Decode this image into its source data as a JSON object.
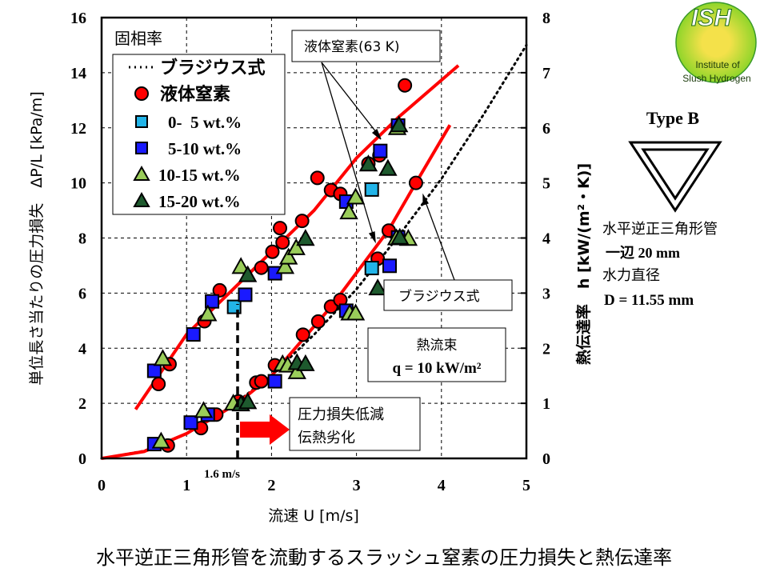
{
  "title": "水平逆正三角形管を流動するスラッシュ窒素の圧力損失と熱伝達率",
  "logo": {
    "main": "ISH",
    "line1": "Institute of",
    "line2": "Slush Hydrogen"
  },
  "side_panel": {
    "type_label": "Type B",
    "tube_desc": "水平逆正三角形管",
    "side_length": "一辺 20 mm",
    "hydraulic_diameter_label": "水力直径",
    "hydraulic_diameter_value": "D = 11.55 mm"
  },
  "annotations": {
    "legend_title": "固相率",
    "ln2_box": "液体窒素(63 K)",
    "blasius_box": "ブラジウス式",
    "heat_flux_label": "熱流束",
    "heat_flux_value": "q = 10 kW/m²",
    "effect_line1": "圧力損失低減",
    "effect_line2": "伝熱劣化",
    "velocity_marker": "1.6 m/s"
  },
  "colors": {
    "fit_line": "#ff0000",
    "liquid": "#ff0000",
    "s0_5": "#22b4e8",
    "s5_10": "#1a1aff",
    "s10_15": "#9acd5a",
    "s15_20": "#1e5a2e",
    "arrow": "#ff0000"
  },
  "chart_data": {
    "type": "scatter",
    "xlabel": "流速 U [m/s]",
    "ylabel_left": "単位長さ当たりの圧力損失　ΔP/L [kPa/m]",
    "ylabel_right": "熱伝達率　h [kW/(m²・K)]",
    "xlim": [
      0,
      5
    ],
    "ylim_left": [
      0,
      16
    ],
    "ylim_right": [
      0,
      8
    ],
    "x_ticks": [
      "0",
      "1",
      "2",
      "3",
      "4",
      "5"
    ],
    "y_left_ticks": [
      "0",
      "2",
      "4",
      "6",
      "8",
      "10",
      "12",
      "14",
      "16"
    ],
    "y_right_ticks": [
      "0",
      "1",
      "2",
      "3",
      "4",
      "5",
      "6",
      "7",
      "8"
    ],
    "grid": true,
    "legend_position": "top-left",
    "legend": [
      {
        "label": "ブラジウス式",
        "marker": "dotted-line"
      },
      {
        "label": "液体窒素",
        "marker": "circle"
      },
      {
        "label": "0-  5 wt.%",
        "marker": "square-light"
      },
      {
        "label": "5-10 wt.%",
        "marker": "square-dark"
      },
      {
        "label": "10-15 wt.%",
        "marker": "triangle-light"
      },
      {
        "label": "15-20 wt.%",
        "marker": "triangle-dark"
      }
    ],
    "pressure_drop": {
      "axis": "left",
      "series": [
        {
          "name": "液体窒素",
          "marker": "circle",
          "x": [
            0.78,
            1.17,
            1.35,
            1.61,
            1.82,
            1.88,
            2.04,
            2.37,
            2.55,
            2.7,
            2.81,
            3.25,
            3.38,
            3.7
          ],
          "y": [
            0.47,
            1.1,
            1.59,
            2.07,
            2.75,
            2.8,
            3.38,
            4.49,
            4.97,
            5.51,
            5.75,
            7.25,
            8.27,
            10.0
          ]
        },
        {
          "name": "0-  5 wt.%",
          "marker": "square-light",
          "x": [
            3.18
          ],
          "y": [
            6.91
          ]
        },
        {
          "name": "5-10 wt.%",
          "marker": "square-dark",
          "x": [
            0.62,
            1.05,
            1.25,
            2.04,
            2.88,
            3.39,
            3.49
          ],
          "y": [
            0.52,
            1.3,
            1.59,
            2.8,
            5.36,
            6.99,
            8.02
          ]
        },
        {
          "name": "10-15 wt.%",
          "marker": "triangle-light",
          "x": [
            0.7,
            1.2,
            1.55,
            2.13,
            2.19,
            2.3,
            2.92,
            2.99,
            3.47,
            3.61
          ],
          "y": [
            0.62,
            1.73,
            2.0,
            3.43,
            3.38,
            3.14,
            5.27,
            5.27,
            8.0,
            7.98
          ]
        },
        {
          "name": "15-20 wt.%",
          "marker": "triangle-dark",
          "x": [
            1.64,
            1.72,
            2.3,
            2.4,
            3.25,
            3.51
          ],
          "y": [
            1.97,
            2.05,
            3.47,
            3.43,
            6.18,
            8.02
          ]
        }
      ],
      "fit_line": {
        "x": [
          0,
          0.5,
          1,
          1.6,
          2,
          2.7,
          3.38,
          3.7,
          4.1
        ],
        "y": [
          0,
          0.25,
          0.9,
          2.0,
          3.0,
          5.5,
          8.3,
          10.0,
          12.1
        ]
      },
      "blasius": {
        "x": [
          0,
          0.5,
          1,
          1.5,
          2,
          2.5,
          3,
          3.5,
          4,
          4.5,
          5
        ],
        "y": [
          0,
          0.27,
          0.9,
          1.82,
          3.02,
          4.49,
          6.14,
          8.09,
          10.15,
          12.5,
          15.0
        ]
      }
    },
    "heat_transfer": {
      "axis": "right",
      "series": [
        {
          "name": "液体窒素",
          "marker": "circle",
          "x": [
            0.67,
            0.8,
            1.21,
            1.39,
            1.88,
            2.01,
            2.13,
            2.1,
            2.36,
            2.54,
            2.7,
            2.81,
            3.14,
            3.27,
            3.57
          ],
          "y": [
            1.35,
            1.71,
            2.49,
            3.05,
            3.46,
            3.75,
            3.92,
            4.18,
            4.31,
            5.09,
            4.87,
            4.8,
            5.35,
            5.5,
            6.77
          ]
        },
        {
          "name": "0-  5 wt.%",
          "marker": "square-light",
          "x": [
            1.56,
            3.18
          ],
          "y": [
            2.75,
            4.88
          ]
        },
        {
          "name": "5-10 wt.%",
          "marker": "square-dark",
          "x": [
            0.62,
            1.08,
            1.3,
            1.69,
            2.04,
            2.88,
            3.28,
            3.49
          ],
          "y": [
            1.59,
            2.25,
            2.85,
            2.97,
            3.36,
            4.66,
            5.58,
            6.04
          ]
        },
        {
          "name": "10-15 wt.%",
          "marker": "triangle-light",
          "x": [
            0.72,
            1.25,
            1.64,
            2.16,
            2.2,
            2.29,
            2.91,
            2.99,
            3.48
          ],
          "y": [
            1.81,
            2.62,
            3.48,
            3.48,
            3.65,
            3.82,
            4.47,
            4.74,
            6.0
          ]
        },
        {
          "name": "15-20 wt.%",
          "marker": "triangle-dark",
          "x": [
            1.72,
            2.4,
            3.14,
            3.37,
            3.5
          ],
          "y": [
            3.33,
            3.99,
            5.34,
            5.26,
            6.05
          ]
        }
      ],
      "fit_line": {
        "x": [
          0.4,
          1,
          1.5,
          2,
          2.5,
          3,
          3.5,
          4.2
        ],
        "y": [
          0.89,
          2.25,
          3.0,
          3.75,
          4.5,
          5.45,
          6.2,
          7.13
        ]
      }
    }
  }
}
